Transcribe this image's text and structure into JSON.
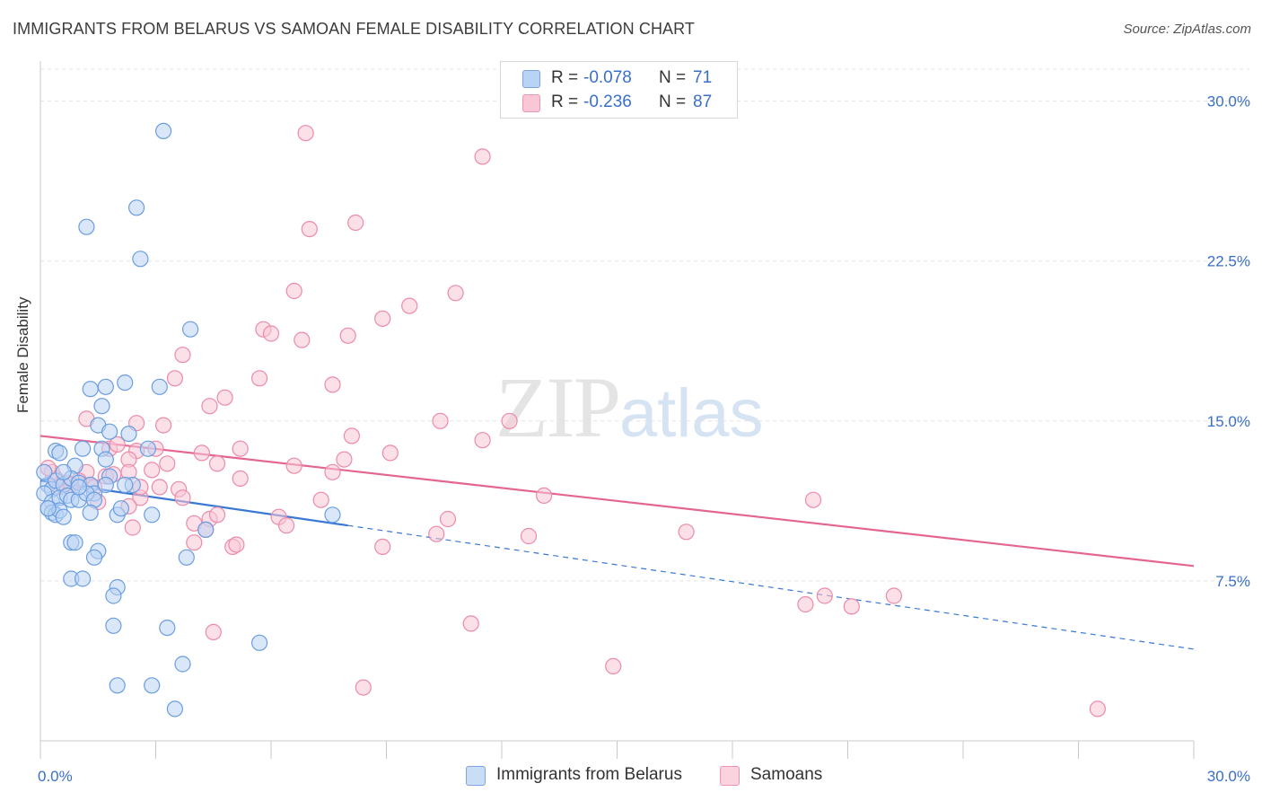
{
  "title": "IMMIGRANTS FROM BELARUS VS SAMOAN FEMALE DISABILITY CORRELATION CHART",
  "source": "Source: ZipAtlas.com",
  "watermark": {
    "zip": "ZIP",
    "atlas": "atlas"
  },
  "legend": {
    "r_label": "R =",
    "n_label": "N =",
    "items": [
      {
        "r": "-0.078",
        "n": "71",
        "color": "#b9d3f4",
        "border": "#7aa6e3"
      },
      {
        "r": "-0.236",
        "n": "87",
        "color": "#f9c7d6",
        "border": "#ee94b0"
      }
    ]
  },
  "bottom_legend": [
    {
      "label": "Immigrants from Belarus",
      "color": "#c9ddf7",
      "border": "#7aa6e3"
    },
    {
      "label": "Samoans",
      "color": "#fbd3df",
      "border": "#ee94b0"
    }
  ],
  "chart_data": {
    "type": "scatter",
    "ylabel": "Female Disability",
    "xlim": [
      0,
      30
    ],
    "ylim": [
      0,
      31.5
    ],
    "x_tick_labels": [
      "0.0%",
      "30.0%"
    ],
    "y_ticks": [
      7.5,
      15.0,
      22.5,
      30.0
    ],
    "y_tick_labels": [
      "7.5%",
      "15.0%",
      "22.5%",
      "30.0%"
    ],
    "grid": true,
    "series": [
      {
        "name": "Immigrants from Belarus",
        "color": "#6a9de0",
        "fill": "#b9d3f4",
        "line_color": "#3a78d4",
        "trend": {
          "x0": 0.0,
          "y0": 12.2,
          "x1": 8.0,
          "y1": 10.1,
          "dash_to_x": 30.0,
          "dash_to_y": 4.3
        },
        "points": [
          [
            3.2,
            28.6
          ],
          [
            2.5,
            25.0
          ],
          [
            1.2,
            24.1
          ],
          [
            2.6,
            22.6
          ],
          [
            3.9,
            19.3
          ],
          [
            2.2,
            16.8
          ],
          [
            1.7,
            16.6
          ],
          [
            1.3,
            16.5
          ],
          [
            3.1,
            16.6
          ],
          [
            1.6,
            15.7
          ],
          [
            1.5,
            14.8
          ],
          [
            1.8,
            14.5
          ],
          [
            2.3,
            14.4
          ],
          [
            0.4,
            13.6
          ],
          [
            0.5,
            13.5
          ],
          [
            1.1,
            13.7
          ],
          [
            1.6,
            13.7
          ],
          [
            2.8,
            13.7
          ],
          [
            0.9,
            12.9
          ],
          [
            1.7,
            13.2
          ],
          [
            0.2,
            12.0
          ],
          [
            0.3,
            11.8
          ],
          [
            0.4,
            12.2
          ],
          [
            0.6,
            12.0
          ],
          [
            0.8,
            12.3
          ],
          [
            1.0,
            12.1
          ],
          [
            1.3,
            12.0
          ],
          [
            1.4,
            11.6
          ],
          [
            1.8,
            12.4
          ],
          [
            2.4,
            12.0
          ],
          [
            0.1,
            11.6
          ],
          [
            0.3,
            11.2
          ],
          [
            0.5,
            11.4
          ],
          [
            0.7,
            11.5
          ],
          [
            0.8,
            11.3
          ],
          [
            1.0,
            11.3
          ],
          [
            1.2,
            11.6
          ],
          [
            1.4,
            11.3
          ],
          [
            0.2,
            10.9
          ],
          [
            0.3,
            10.7
          ],
          [
            0.4,
            10.6
          ],
          [
            0.5,
            10.8
          ],
          [
            0.6,
            10.5
          ],
          [
            1.3,
            10.7
          ],
          [
            2.0,
            10.6
          ],
          [
            2.1,
            10.9
          ],
          [
            2.9,
            10.6
          ],
          [
            4.3,
            9.9
          ],
          [
            7.6,
            10.6
          ],
          [
            0.8,
            9.3
          ],
          [
            0.9,
            9.3
          ],
          [
            1.5,
            8.9
          ],
          [
            1.4,
            8.6
          ],
          [
            3.8,
            8.6
          ],
          [
            0.8,
            7.6
          ],
          [
            1.1,
            7.6
          ],
          [
            2.0,
            7.2
          ],
          [
            1.9,
            6.8
          ],
          [
            1.9,
            5.4
          ],
          [
            3.3,
            5.3
          ],
          [
            5.7,
            4.6
          ],
          [
            3.7,
            3.6
          ],
          [
            2.0,
            2.6
          ],
          [
            2.9,
            2.6
          ],
          [
            3.5,
            1.5
          ],
          [
            0.1,
            12.6
          ],
          [
            0.2,
            10.9
          ],
          [
            0.6,
            12.6
          ],
          [
            1.0,
            11.9
          ],
          [
            1.7,
            12.0
          ],
          [
            2.2,
            12.0
          ]
        ]
      },
      {
        "name": "Samoans",
        "color": "#ec8aa9",
        "fill": "#f9c7d6",
        "line_color": "#e46592",
        "trend": {
          "x0": 0.0,
          "y0": 14.3,
          "x1": 30.0,
          "y1": 8.2
        },
        "points": [
          [
            6.9,
            28.5
          ],
          [
            11.5,
            27.4
          ],
          [
            8.2,
            24.3
          ],
          [
            7.0,
            24.0
          ],
          [
            6.6,
            21.1
          ],
          [
            10.8,
            21.0
          ],
          [
            9.6,
            20.4
          ],
          [
            8.9,
            19.8
          ],
          [
            5.8,
            19.3
          ],
          [
            8.0,
            19.0
          ],
          [
            6.0,
            19.1
          ],
          [
            6.8,
            18.8
          ],
          [
            3.7,
            18.1
          ],
          [
            3.5,
            17.0
          ],
          [
            5.7,
            17.0
          ],
          [
            7.6,
            16.7
          ],
          [
            4.8,
            16.1
          ],
          [
            4.4,
            15.7
          ],
          [
            1.2,
            15.1
          ],
          [
            2.5,
            14.9
          ],
          [
            3.2,
            14.8
          ],
          [
            10.4,
            15.0
          ],
          [
            12.2,
            15.0
          ],
          [
            8.1,
            14.3
          ],
          [
            11.5,
            14.1
          ],
          [
            1.8,
            13.7
          ],
          [
            2.5,
            13.6
          ],
          [
            3.0,
            13.7
          ],
          [
            4.2,
            13.5
          ],
          [
            5.2,
            13.7
          ],
          [
            9.1,
            13.5
          ],
          [
            2.3,
            13.2
          ],
          [
            4.6,
            13.0
          ],
          [
            6.6,
            12.9
          ],
          [
            7.9,
            13.2
          ],
          [
            1.2,
            12.6
          ],
          [
            2.3,
            12.6
          ],
          [
            2.9,
            12.7
          ],
          [
            5.2,
            12.3
          ],
          [
            7.6,
            12.6
          ],
          [
            0.4,
            12.3
          ],
          [
            0.7,
            12.1
          ],
          [
            1.0,
            12.2
          ],
          [
            1.3,
            12.0
          ],
          [
            1.7,
            12.4
          ],
          [
            1.9,
            12.5
          ],
          [
            3.1,
            11.9
          ],
          [
            3.6,
            11.8
          ],
          [
            0.3,
            12.6
          ],
          [
            0.5,
            11.9
          ],
          [
            2.6,
            11.4
          ],
          [
            3.7,
            11.4
          ],
          [
            7.3,
            11.3
          ],
          [
            13.1,
            11.5
          ],
          [
            20.1,
            11.3
          ],
          [
            1.5,
            11.2
          ],
          [
            2.3,
            11.0
          ],
          [
            6.2,
            10.5
          ],
          [
            4.0,
            10.2
          ],
          [
            4.4,
            10.4
          ],
          [
            4.3,
            9.9
          ],
          [
            6.4,
            10.1
          ],
          [
            10.6,
            10.4
          ],
          [
            16.8,
            9.8
          ],
          [
            10.3,
            9.7
          ],
          [
            4.0,
            9.3
          ],
          [
            5.0,
            9.1
          ],
          [
            5.1,
            9.2
          ],
          [
            8.9,
            9.1
          ],
          [
            12.7,
            9.6
          ],
          [
            2.4,
            10.0
          ],
          [
            19.9,
            6.4
          ],
          [
            20.4,
            6.8
          ],
          [
            21.1,
            6.3
          ],
          [
            22.2,
            6.8
          ],
          [
            11.2,
            5.5
          ],
          [
            4.5,
            5.1
          ],
          [
            14.9,
            3.5
          ],
          [
            8.4,
            2.5
          ],
          [
            27.5,
            1.5
          ],
          [
            0.2,
            12.8
          ],
          [
            0.8,
            12.0
          ],
          [
            1.4,
            11.9
          ],
          [
            2.0,
            13.9
          ],
          [
            2.6,
            11.9
          ],
          [
            3.3,
            13.0
          ],
          [
            4.6,
            10.6
          ]
        ]
      }
    ]
  }
}
